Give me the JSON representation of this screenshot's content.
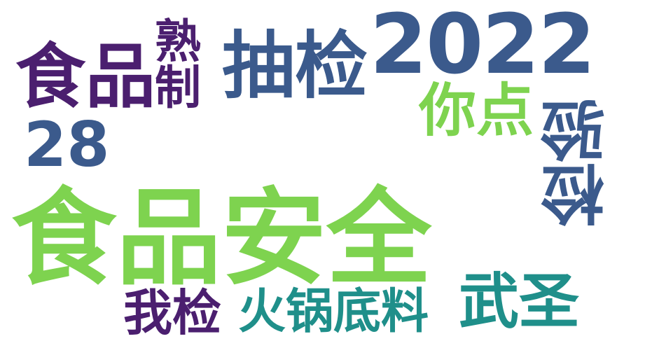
{
  "words": {
    "w2022": {
      "text": "2022",
      "color": "#3b5a8c"
    },
    "choujian": {
      "text": "抽检",
      "color": "#3b5a8c"
    },
    "shipin_small": {
      "text": "食品",
      "color": "#4b1f6f"
    },
    "shuzhi": {
      "text": "熟制",
      "color": "#4b1f6f"
    },
    "nidian": {
      "text": "你点",
      "color": "#7ed34f"
    },
    "w28": {
      "text": "28",
      "color": "#3b5a8c"
    },
    "jianyan": {
      "text": "检验",
      "color": "#3b5a8c"
    },
    "shipinanquan": {
      "text": "食品安全",
      "color": "#7ed34f"
    },
    "wusheng": {
      "text": "武圣",
      "color": "#1f8f8a"
    },
    "wojian": {
      "text": "我检",
      "color": "#4b1f6f"
    },
    "huoguo": {
      "text": "火锅底料",
      "color": "#1f8f8a"
    }
  }
}
